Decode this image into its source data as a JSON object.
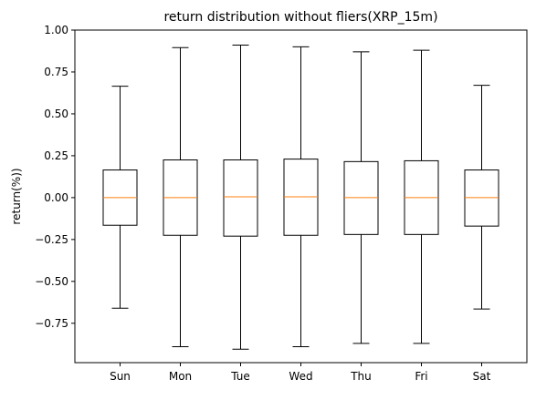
{
  "chart_data": {
    "type": "box",
    "title": "return distribution without fliers(XRP_15m)",
    "xlabel": "",
    "ylabel": "return(%))",
    "ylim": [
      -0.985,
      1.0
    ],
    "yticks": [
      {
        "value": 1.0,
        "label": "1.00"
      },
      {
        "value": 0.75,
        "label": "0.75"
      },
      {
        "value": 0.5,
        "label": "0.50"
      },
      {
        "value": 0.25,
        "label": "0.25"
      },
      {
        "value": 0.0,
        "label": "0.00"
      },
      {
        "value": -0.25,
        "label": "−0.25"
      },
      {
        "value": -0.5,
        "label": "−0.50"
      },
      {
        "value": -0.75,
        "label": "−0.75"
      }
    ],
    "grid": false,
    "legend": "none",
    "colors": {
      "box": "#000000",
      "median": "#ff7f0e",
      "axes": "#000000"
    },
    "categories": [
      "Sun",
      "Mon",
      "Tue",
      "Wed",
      "Thu",
      "Fri",
      "Sat"
    ],
    "boxes": [
      {
        "label": "Sun",
        "whislo": -0.66,
        "q1": -0.165,
        "med": 0.0,
        "q3": 0.165,
        "whishi": 0.665
      },
      {
        "label": "Mon",
        "whislo": -0.89,
        "q1": -0.225,
        "med": 0.0,
        "q3": 0.225,
        "whishi": 0.895
      },
      {
        "label": "Tue",
        "whislo": -0.905,
        "q1": -0.23,
        "med": 0.005,
        "q3": 0.225,
        "whishi": 0.91
      },
      {
        "label": "Wed",
        "whislo": -0.89,
        "q1": -0.225,
        "med": 0.005,
        "q3": 0.23,
        "whishi": 0.9
      },
      {
        "label": "Thu",
        "whislo": -0.87,
        "q1": -0.22,
        "med": 0.0,
        "q3": 0.215,
        "whishi": 0.87
      },
      {
        "label": "Fri",
        "whislo": -0.87,
        "q1": -0.22,
        "med": 0.0,
        "q3": 0.22,
        "whishi": 0.88
      },
      {
        "label": "Sat",
        "whislo": -0.665,
        "q1": -0.17,
        "med": 0.0,
        "q3": 0.165,
        "whishi": 0.67
      }
    ]
  }
}
